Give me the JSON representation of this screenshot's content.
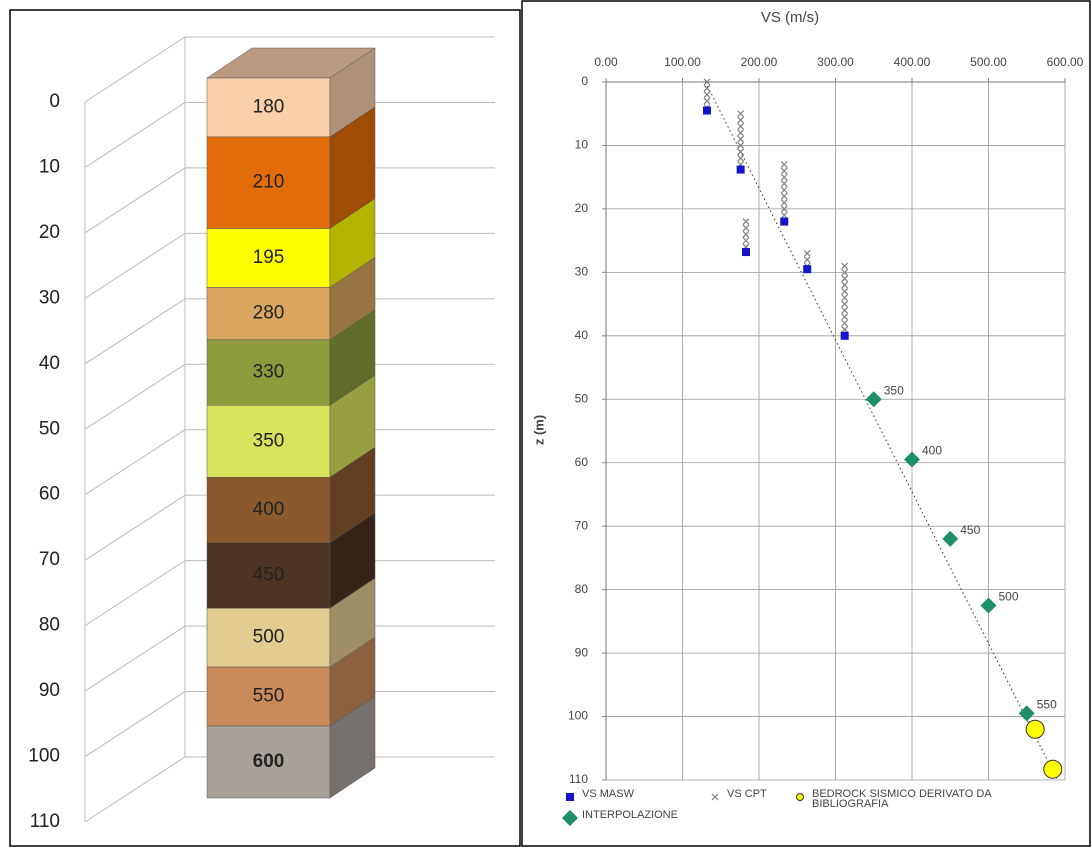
{
  "chart_data": [
    {
      "type": "column3d",
      "ylim": [
        0,
        110
      ],
      "yticks": [
        0,
        10,
        20,
        30,
        40,
        50,
        60,
        70,
        80,
        90,
        100,
        110
      ],
      "grid": true,
      "layers": [
        {
          "value": 9,
          "label": 180,
          "color": "#f9cfaa"
        },
        {
          "value": 14,
          "label": 210,
          "color": "#e36c0a"
        },
        {
          "value": 9,
          "label": 195,
          "color": "#ffff00"
        },
        {
          "value": 8,
          "label": 280,
          "color": "#d9a660"
        },
        {
          "value": 10,
          "label": 330,
          "color": "#8c9b3c"
        },
        {
          "value": 11,
          "label": 350,
          "color": "#d8e35c"
        },
        {
          "value": 10,
          "label": 400,
          "color": "#8a5a2e"
        },
        {
          "value": 10,
          "label": 450,
          "color": "#4d3322"
        },
        {
          "value": 9,
          "label": 500,
          "color": "#e3cb92"
        },
        {
          "value": 9,
          "label": 550,
          "color": "#c98a5c"
        },
        {
          "value": 11,
          "label": 600,
          "color": "#a8a29a",
          "bold": true
        }
      ]
    },
    {
      "type": "scatter",
      "title": "VS (m/s)",
      "y_label": "z (m)",
      "xlim": [
        0,
        600
      ],
      "xticks": [
        {
          "value": 0,
          "label": "0.00"
        },
        {
          "value": 100,
          "label": "100.00"
        },
        {
          "value": 200,
          "label": "200.00"
        },
        {
          "value": 300,
          "label": "300.00"
        },
        {
          "value": 400,
          "label": "400.00"
        },
        {
          "value": 500,
          "label": "500.00"
        },
        {
          "value": 600,
          "label": "600.00"
        }
      ],
      "ylim": [
        0,
        110
      ],
      "y_inverted": true,
      "yticks": [
        0,
        10,
        20,
        30,
        40,
        50,
        60,
        70,
        80,
        90,
        100,
        110
      ],
      "grid": true,
      "legend": "bottom",
      "trendline": {
        "x": [
          130,
          590
        ],
        "y": [
          0,
          110
        ],
        "style": "dotted"
      },
      "series": [
        {
          "name": "VS MASW",
          "marker": "square",
          "color": "#1414c8",
          "x": [
            132,
            176,
            233,
            183,
            263,
            312
          ],
          "y": [
            4.5,
            13.8,
            22,
            26.8,
            29.5,
            40
          ]
        },
        {
          "name": "VS CPT",
          "marker": "x",
          "color": "#7f7f7f",
          "x": [
            132,
            132,
            132,
            132,
            132,
            176,
            176,
            176,
            176,
            176,
            176,
            176,
            176,
            176,
            233,
            233,
            233,
            233,
            233,
            233,
            233,
            233,
            233,
            183,
            183,
            183,
            183,
            183,
            263,
            263,
            263,
            312,
            312,
            312,
            312,
            312,
            312,
            312,
            312,
            312,
            312,
            312
          ],
          "y": [
            0,
            1,
            2,
            3,
            4,
            5,
            6,
            7,
            8,
            9,
            10,
            11,
            12,
            13,
            13,
            14,
            15,
            16,
            17,
            18,
            19,
            20,
            21,
            22,
            23,
            24,
            25,
            26,
            27,
            28,
            29,
            29,
            30,
            31,
            32,
            33,
            34,
            35,
            36,
            37,
            38,
            39
          ]
        },
        {
          "name": "BEDROCK SISMICO DERIVATO DA BIBLIOGRAFIA",
          "marker": "circle",
          "color": "#ffff00",
          "x": [
            561,
            584
          ],
          "y": [
            102,
            108.3
          ]
        },
        {
          "name": "INTERPOLAZIONE",
          "marker": "diamond",
          "color": "#1f8f6a",
          "data_labels": true,
          "x": [
            350,
            400,
            450,
            500,
            550
          ],
          "y": [
            50,
            59.5,
            72,
            82.5,
            99.5
          ]
        }
      ]
    }
  ]
}
